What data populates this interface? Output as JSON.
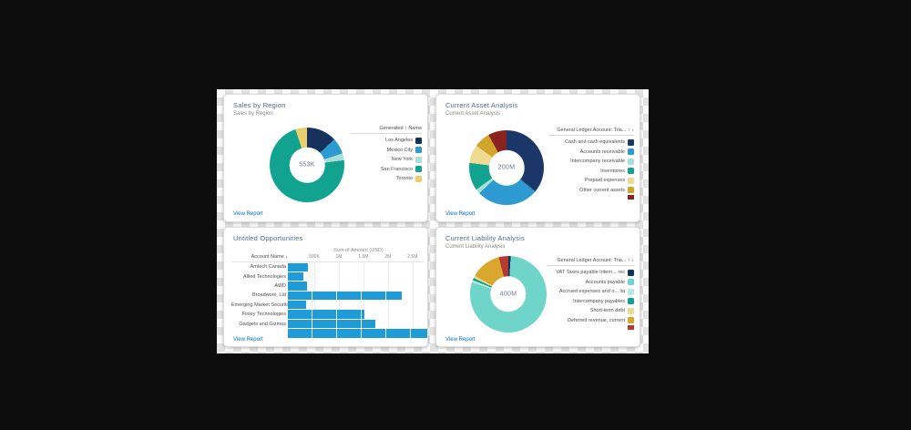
{
  "ui": {
    "view_report_label": "View Report"
  },
  "chart_data": [
    {
      "type": "pie",
      "title": "Sales by Region",
      "subtitle": "Sales by Region",
      "center_label": "553K",
      "legend_header": "Generated ↑ Name",
      "legend_position": "right",
      "slices": [
        {
          "label": "Los Angeles",
          "color": "#16325c",
          "pct": 13
        },
        {
          "label": "Mexico City",
          "color": "#2e9ad2",
          "pct": 7
        },
        {
          "label": "New York",
          "color": "#aadfd8",
          "pct": 3
        },
        {
          "label": "San Francisco",
          "color": "#12a390",
          "pct": 72
        },
        {
          "label": "Toronto",
          "color": "#e7cf6d",
          "pct": 5
        }
      ]
    },
    {
      "type": "pie",
      "title": "Current Asset Analysis",
      "subtitle": "Current Asset Analysis",
      "center_label": "200M",
      "legend_header": "General Ledger Account: Tria... ↑ ↓",
      "legend_position": "right",
      "slices": [
        {
          "label": "Cash and cash equivalents",
          "color": "#1b3668",
          "pct": 36
        },
        {
          "label": "Accounts receivable",
          "color": "#2e9ad2",
          "pct": 27
        },
        {
          "label": "Intercompany receivable",
          "color": "#aadfd8",
          "pct": 2
        },
        {
          "label": "Inventories",
          "color": "#12a390",
          "pct": 12
        },
        {
          "label": "Prepaid expenses",
          "color": "#eeda90",
          "pct": 8
        },
        {
          "label": "Other current assets",
          "color": "#cfa52c",
          "pct": 7
        },
        {
          "label": "",
          "color": "#8a221d",
          "pct": 8,
          "clipped": true
        }
      ]
    },
    {
      "type": "bar",
      "title": "Untitled Opportunities",
      "axis_title": "Sum of Amount (USD)",
      "column_header": "Account Name ↓",
      "bar_color": "#1f9bd7",
      "xlim": [
        0,
        2.8
      ],
      "ticks": [
        {
          "label": "500K",
          "value": 0.5
        },
        {
          "label": "1M",
          "value": 1.0
        },
        {
          "label": "1.5M",
          "value": 1.5
        },
        {
          "label": "2M",
          "value": 2.0
        },
        {
          "label": "2.5M",
          "value": 2.5
        }
      ],
      "categories": [
        "Amtech Canada",
        "Allied Technologies",
        "AWD",
        "Broadworx, Ltd",
        "Emerging Market Securities",
        "Finley Technologies",
        "Gadgets and Gizmos",
        ""
      ],
      "values": [
        0.41,
        0.31,
        0.39,
        2.28,
        0.37,
        1.54,
        1.76,
        2.89
      ],
      "values_unit": "millions USD",
      "clipped_rows": [
        7
      ]
    },
    {
      "type": "pie",
      "title": "Current Liability Analysis",
      "subtitle": "Current Liability Analysis",
      "center_label": "400M",
      "legend_header": "General Ledger Account: Tria... ↑ ↓",
      "legend_position": "right",
      "slices": [
        {
          "label": "VAT Taxes payable Intern... rec",
          "color": "#16325c",
          "pct": 1
        },
        {
          "label": "Accounts payable",
          "color": "#6fd4ca",
          "pct": 79
        },
        {
          "label": "Accrued expenses and o... lia",
          "color": "#b9e7e1",
          "pct": 1
        },
        {
          "label": "Intercompany payables",
          "color": "#12a390",
          "pct": 1
        },
        {
          "label": "Short-term debt",
          "color": "#eeda90",
          "pct": 1
        },
        {
          "label": "Deferred revenue, current",
          "color": "#d9a62e",
          "pct": 13
        },
        {
          "label": "",
          "color": "#b33a31",
          "pct": 4,
          "clipped": true
        }
      ]
    }
  ]
}
